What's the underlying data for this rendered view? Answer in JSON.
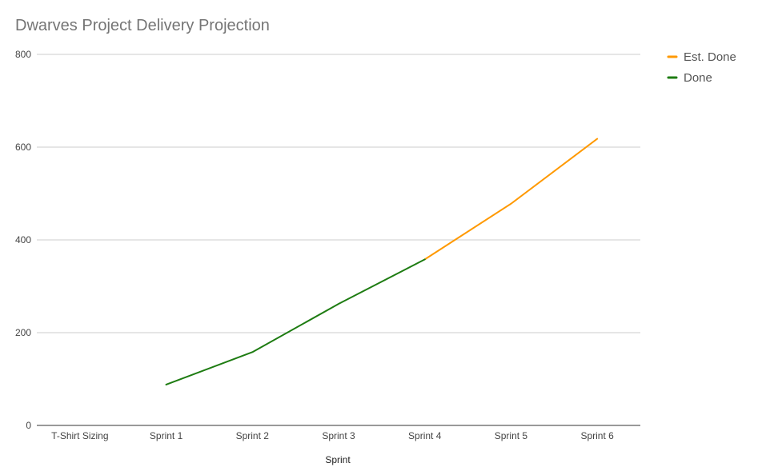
{
  "chart_data": {
    "type": "line",
    "title": "Dwarves Project Delivery Projection",
    "xlabel": "Sprint",
    "ylabel": "",
    "categories": [
      "T-Shirt Sizing",
      "Sprint 1",
      "Sprint 2",
      "Sprint 3",
      "Sprint 4",
      "Sprint 5",
      "Sprint 6"
    ],
    "ylim": [
      0,
      800
    ],
    "yticks": [
      0,
      200,
      400,
      600,
      800
    ],
    "grid": true,
    "legend_position": "top-right",
    "series": [
      {
        "name": "Est. Done",
        "color": "#FF9900",
        "values": [
          null,
          null,
          null,
          null,
          358,
          478,
          618
        ]
      },
      {
        "name": "Done",
        "color": "#1E7C12",
        "values": [
          null,
          88,
          158,
          262,
          358,
          null,
          null
        ]
      }
    ]
  }
}
